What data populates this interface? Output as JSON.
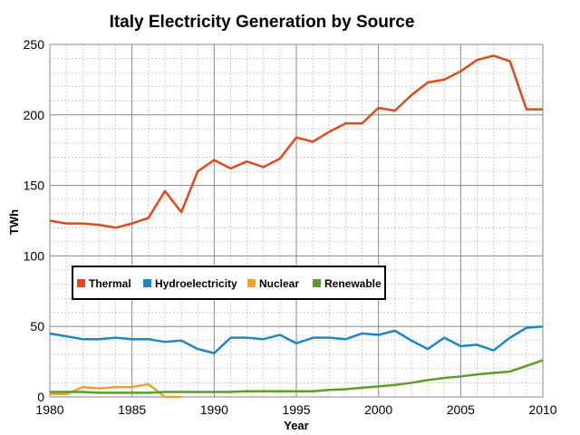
{
  "chart_data": {
    "type": "line",
    "title": "Italy Electricity Generation by Source",
    "xlabel": "Year",
    "ylabel": "TWh",
    "xlim": [
      1980,
      2010
    ],
    "ylim": [
      0,
      250
    ],
    "xticks": [
      1980,
      1985,
      1990,
      1995,
      2000,
      2005,
      2010
    ],
    "yticks": [
      0,
      50,
      100,
      150,
      200,
      250
    ],
    "grid": true,
    "legend_placement": "center-left",
    "x": [
      1980,
      1981,
      1982,
      1983,
      1984,
      1985,
      1986,
      1987,
      1988,
      1989,
      1990,
      1991,
      1992,
      1993,
      1994,
      1995,
      1996,
      1997,
      1998,
      1999,
      2000,
      2001,
      2002,
      2003,
      2004,
      2005,
      2006,
      2007,
      2008,
      2009,
      2010
    ],
    "series": [
      {
        "name": "Thermal",
        "color": "#e0491c",
        "values": [
          125,
          123,
          123,
          122,
          120,
          123,
          127,
          146,
          131,
          160,
          168,
          162,
          167,
          163,
          169,
          184,
          181,
          188,
          194,
          194,
          205,
          203,
          214,
          223,
          225,
          231,
          239,
          242,
          238,
          204,
          204
        ]
      },
      {
        "name": "Hydroelectricity",
        "color": "#1f86c8",
        "values": [
          45,
          43,
          41,
          41,
          42,
          41,
          41,
          39,
          40,
          34,
          31,
          42,
          42,
          41,
          44,
          38,
          42,
          42,
          41,
          45,
          44,
          47,
          40,
          34,
          42,
          36,
          37,
          33,
          42,
          49,
          50
        ]
      },
      {
        "name": "Nuclear",
        "color": "#f0a030",
        "values": [
          2,
          2,
          7,
          6,
          7,
          7,
          9,
          0,
          0,
          null,
          null,
          null,
          null,
          null,
          null,
          null,
          null,
          null,
          null,
          null,
          null,
          null,
          null,
          null,
          null,
          null,
          null,
          null,
          null,
          null,
          null
        ]
      },
      {
        "name": "Renewable",
        "color": "#5a9e23",
        "values": [
          3.5,
          3.5,
          3.5,
          3,
          3,
          3,
          3,
          3.5,
          3.5,
          3.5,
          3.5,
          3.5,
          4,
          4,
          4,
          4,
          4,
          5,
          5.5,
          6.5,
          7.5,
          8.5,
          10,
          12,
          13.5,
          14.5,
          16,
          17,
          18,
          22,
          26
        ]
      }
    ]
  }
}
